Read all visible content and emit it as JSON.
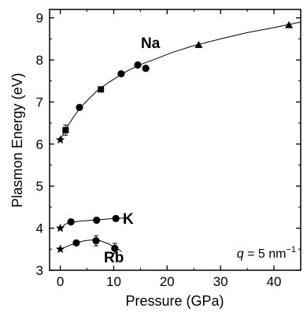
{
  "chart_data": {
    "type": "scatter",
    "title": "",
    "xlabel": "Pressure (GPa)",
    "ylabel": "Plasmon Energy (eV)",
    "xlim": [
      -2,
      45
    ],
    "ylim": [
      3,
      9.2
    ],
    "xticks": [
      0,
      10,
      20,
      30,
      40
    ],
    "yticks": [
      3,
      4,
      5,
      6,
      7,
      8,
      9
    ],
    "grid": false,
    "annotation": {
      "var": "q",
      "rest": " = 5 nm",
      "sup": "−1"
    },
    "series": [
      {
        "name": "Na",
        "points": [
          {
            "x": 0,
            "y": 6.1,
            "marker": "star"
          },
          {
            "x": 1.0,
            "y": 6.33,
            "marker": "square",
            "err": 0.12
          },
          {
            "x": 3.6,
            "y": 6.87,
            "marker": "circle"
          },
          {
            "x": 7.6,
            "y": 7.3,
            "marker": "square"
          },
          {
            "x": 11.4,
            "y": 7.67,
            "marker": "circle"
          },
          {
            "x": 14.5,
            "y": 7.88,
            "marker": "circle"
          },
          {
            "x": 16.0,
            "y": 7.8,
            "marker": "circle"
          },
          {
            "x": 25.9,
            "y": 8.35,
            "marker": "triangle"
          },
          {
            "x": 42.8,
            "y": 8.82,
            "marker": "triangle"
          }
        ],
        "fit": [
          [
            0,
            6.1
          ],
          [
            1,
            6.35
          ],
          [
            2,
            6.55
          ],
          [
            3.5,
            6.83
          ],
          [
            5,
            7.03
          ],
          [
            7,
            7.28
          ],
          [
            9,
            7.46
          ],
          [
            11,
            7.62
          ],
          [
            13,
            7.77
          ],
          [
            15,
            7.89
          ],
          [
            18,
            8.03
          ],
          [
            21,
            8.18
          ],
          [
            25,
            8.34
          ],
          [
            30,
            8.5
          ],
          [
            35,
            8.65
          ],
          [
            40,
            8.77
          ],
          [
            45,
            8.9
          ]
        ]
      },
      {
        "name": "K",
        "points": [
          {
            "x": 0,
            "y": 4.0,
            "marker": "star"
          },
          {
            "x": 2.0,
            "y": 4.15,
            "marker": "circle"
          },
          {
            "x": 6.8,
            "y": 4.19,
            "marker": "circle"
          },
          {
            "x": 10.4,
            "y": 4.23,
            "marker": "circle"
          }
        ],
        "fit": [
          [
            0,
            4.0
          ],
          [
            1,
            4.1
          ],
          [
            2,
            4.14
          ],
          [
            4,
            4.17
          ],
          [
            6,
            4.19
          ],
          [
            8,
            4.21
          ],
          [
            10,
            4.23
          ],
          [
            12,
            4.24
          ]
        ]
      },
      {
        "name": "Rb",
        "points": [
          {
            "x": 0,
            "y": 3.5,
            "marker": "star"
          },
          {
            "x": 3.0,
            "y": 3.65,
            "marker": "circle"
          },
          {
            "x": 6.7,
            "y": 3.7,
            "marker": "circle",
            "err": 0.12
          },
          {
            "x": 10.2,
            "y": 3.52,
            "marker": "circle",
            "err": 0.12
          }
        ],
        "fit": [
          [
            0,
            3.5
          ],
          [
            1.5,
            3.58
          ],
          [
            3,
            3.65
          ],
          [
            4.5,
            3.7
          ],
          [
            6,
            3.72
          ],
          [
            7.5,
            3.7
          ],
          [
            9,
            3.63
          ],
          [
            10.5,
            3.53
          ],
          [
            11.5,
            3.44
          ]
        ]
      }
    ]
  }
}
